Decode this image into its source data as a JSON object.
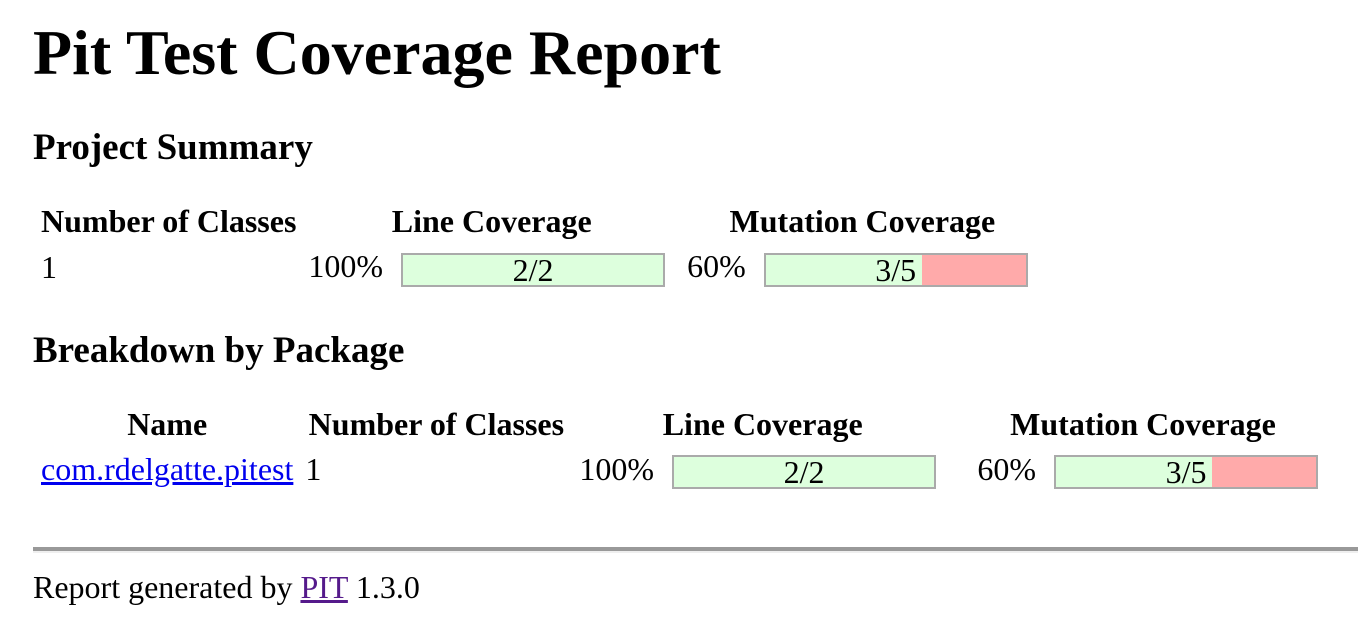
{
  "page": {
    "title": "Pit Test Coverage Report"
  },
  "colors": {
    "bar_green": "#DDFFDD",
    "bar_red": "#FFAAAA",
    "bar_border": "#AAAAAA",
    "link_blue": "#0000EE",
    "link_visited_purple": "#551A8B"
  },
  "project_summary": {
    "heading": "Project Summary",
    "columns": [
      "Number of Classes",
      "Line Coverage",
      "Mutation Coverage"
    ],
    "row": {
      "number_of_classes": "1",
      "line_coverage": {
        "percent": "100%",
        "legend": "2/2",
        "fill_percent": 100
      },
      "mutation_coverage": {
        "percent": "60%",
        "legend": "3/5",
        "fill_percent": 60
      }
    }
  },
  "breakdown": {
    "heading": "Breakdown by Package",
    "columns": [
      "Name",
      "Number of Classes",
      "Line Coverage",
      "Mutation Coverage"
    ],
    "rows": [
      {
        "name": "com.rdelgatte.pitest",
        "number_of_classes": "1",
        "line_coverage": {
          "percent": "100%",
          "legend": "2/2",
          "fill_percent": 100
        },
        "mutation_coverage": {
          "percent": "60%",
          "legend": "3/5",
          "fill_percent": 60
        }
      }
    ]
  },
  "footer": {
    "prefix": "Report generated by",
    "link_label": "PIT",
    "version": "1.3.0"
  },
  "chart_data": {
    "type": "table",
    "title": "Pit Test Coverage Report",
    "series": [
      {
        "name": "Project Summary",
        "number_of_classes": 1,
        "line_coverage_pct": 100,
        "line_covered": 2,
        "line_total": 2,
        "mutation_coverage_pct": 60,
        "mutations_killed": 3,
        "mutations_total": 5
      },
      {
        "name": "com.rdelgatte.pitest",
        "number_of_classes": 1,
        "line_coverage_pct": 100,
        "line_covered": 2,
        "line_total": 2,
        "mutation_coverage_pct": 60,
        "mutations_killed": 3,
        "mutations_total": 5
      }
    ]
  }
}
